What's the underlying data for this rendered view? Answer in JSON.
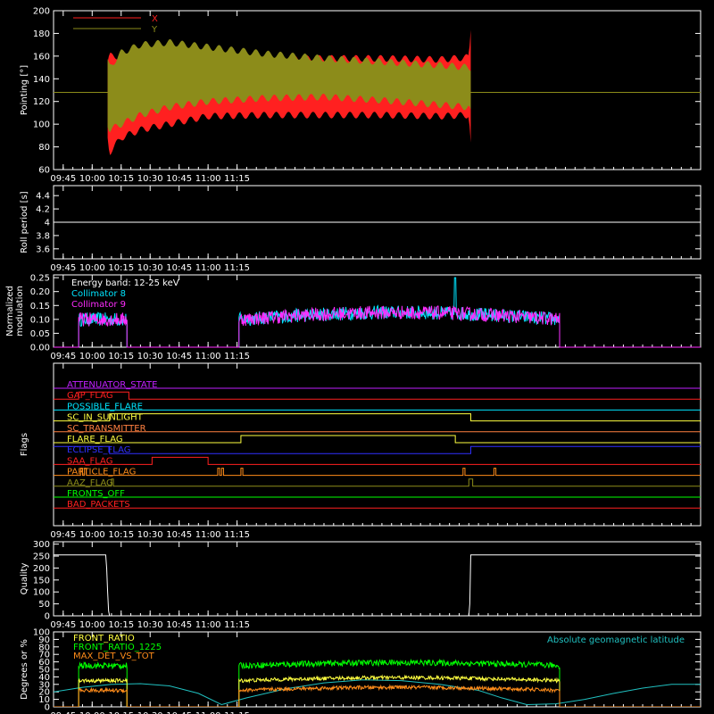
{
  "chart_data": [
    {
      "type": "area",
      "ylabel": "Pointing [°]",
      "ylim": [
        60,
        200
      ],
      "yticks": [
        60,
        80,
        100,
        120,
        140,
        160,
        180,
        200
      ],
      "xlim_min": [
        580,
        915
      ],
      "xtick_labels": [
        "09:45",
        "10:00",
        "10:15",
        "10:30",
        "10:45",
        "11:00",
        "11:15"
      ],
      "legend": "top-left",
      "series": [
        {
          "name": "X",
          "color": "#ff2020",
          "band": {
            "x": [
              608,
              609,
              615,
              625,
              640,
              660,
              690,
              720,
              750,
              780,
              795,
              796
            ],
            "upper": [
              155,
              160,
              160,
              158,
              156,
              155,
              157,
              158,
              158,
              157,
              159,
              185
            ],
            "lower": [
              88,
              75,
              88,
              95,
              100,
              107,
              108,
              108,
              108,
              107,
              108,
              82
            ]
          }
        },
        {
          "name": "Y",
          "color": "#8c8c1a",
          "band": {
            "x": [
              608,
              609,
              615,
              625,
              640,
              660,
              690,
              720,
              750,
              780,
              795,
              796
            ],
            "upper": [
              155,
              150,
              163,
              170,
              172,
              168,
              162,
              158,
              155,
              152,
              150,
              150
            ],
            "lower": [
              100,
              95,
              100,
              108,
              115,
              120,
              123,
              124,
              121,
              117,
              115,
              110
            ]
          }
        }
      ],
      "baseline": 128
    },
    {
      "type": "line",
      "ylabel": "Roll period [s]",
      "ylim": [
        3.45,
        4.55
      ],
      "yticks": [
        3.6,
        3.8,
        4.0,
        4.2,
        4.4
      ],
      "xtick_labels": [
        "09:45",
        "10:00",
        "10:15",
        "10:30",
        "10:45",
        "11:00",
        "11:15"
      ],
      "series": [
        {
          "x": [
            580,
            915
          ],
          "y": [
            4.0,
            4.0
          ],
          "color": "#ffffff"
        }
      ]
    },
    {
      "type": "line",
      "ylabel": "Normalized modulation",
      "ylim": [
        0,
        0.26
      ],
      "yticks": [
        0.0,
        0.05,
        0.1,
        0.15,
        0.2,
        0.25
      ],
      "ytick_labels": [
        "0.00",
        "0.05",
        "0.10",
        "0.15",
        "0.20",
        "0.25"
      ],
      "xtick_labels": [
        "09:45",
        "10:00",
        "10:15",
        "10:30",
        "10:45",
        "11:00",
        "11:15"
      ],
      "annotation": "Energy band: 12-25 keV",
      "segments": [
        [
          593,
          618
        ],
        [
          676,
          842
        ]
      ],
      "series": [
        {
          "name": "Collimator 8",
          "color": "#00e5ff",
          "level": [
            0.1,
            0.11,
            0.1,
            0.12,
            0.125,
            0.1
          ]
        },
        {
          "name": "Collimator 9",
          "color": "#ff2cff",
          "level": [
            0.1,
            0.11,
            0.1,
            0.12,
            0.125,
            0.1
          ]
        }
      ]
    },
    {
      "type": "line",
      "ylabel": "Flags",
      "xtick_labels": [
        "09:45",
        "10:00",
        "10:15",
        "10:30",
        "10:45",
        "11:00",
        "11:15"
      ],
      "flags": [
        {
          "name": "ATTENUATOR_STATE",
          "color": "#c020ff",
          "transitions": [
            [
              580,
              0
            ]
          ]
        },
        {
          "name": "GAP_FLAG",
          "color": "#ff2020",
          "transitions": [
            [
              580,
              0
            ],
            [
              593,
              1
            ],
            [
              619,
              0
            ]
          ]
        },
        {
          "name": "POSSIBLE_FLARE",
          "color": "#00e5ff",
          "transitions": [
            [
              580,
              0
            ]
          ]
        },
        {
          "name": "SC_IN_SUNLIGHT",
          "color": "#ffff40",
          "transitions": [
            [
              580,
              0
            ],
            [
              609,
              1
            ],
            [
              796,
              0
            ]
          ]
        },
        {
          "name": "SC_TRANSMITTER",
          "color": "#ff8040",
          "transitions": [
            [
              580,
              0
            ]
          ]
        },
        {
          "name": "FLARE_FLAG",
          "color": "#ffff40",
          "transitions": [
            [
              580,
              0
            ],
            [
              677,
              1
            ],
            [
              788,
              0
            ]
          ]
        },
        {
          "name": "ECLIPSE_FLAG",
          "color": "#3030ff",
          "transitions": [
            [
              580,
              1
            ],
            [
              609,
              0
            ],
            [
              796,
              1
            ]
          ]
        },
        {
          "name": "SAA_FLAG",
          "color": "#ff2020",
          "transitions": [
            [
              580,
              0
            ],
            [
              631,
              1
            ],
            [
              660,
              0
            ]
          ]
        },
        {
          "name": "PARTICLE_FLAG",
          "color": "#ff8c1a",
          "transitions": [
            [
              580,
              0
            ],
            [
              594,
              1
            ],
            [
              595,
              0
            ],
            [
              596,
              1
            ],
            [
              597,
              0
            ],
            [
              665,
              1
            ],
            [
              666,
              0
            ],
            [
              667,
              1
            ],
            [
              668,
              0
            ],
            [
              677,
              1
            ],
            [
              678,
              0
            ],
            [
              792,
              1
            ],
            [
              793,
              0
            ],
            [
              808,
              1
            ],
            [
              809,
              0
            ]
          ]
        },
        {
          "name": "AAZ_FLAG",
          "color": "#8c8c1a",
          "transitions": [
            [
              580,
              0
            ],
            [
              610,
              1
            ],
            [
              611,
              0
            ],
            [
              795,
              1
            ],
            [
              797,
              0
            ]
          ]
        },
        {
          "name": "FRONTS_OFF",
          "color": "#00ff00",
          "transitions": [
            [
              580,
              0
            ]
          ]
        },
        {
          "name": "BAD_PACKETS",
          "color": "#ff2020",
          "transitions": [
            [
              580,
              0
            ]
          ]
        }
      ]
    },
    {
      "type": "line",
      "ylabel": "Quality",
      "ylim": [
        0,
        310
      ],
      "yticks": [
        0,
        50,
        100,
        150,
        200,
        250,
        300
      ],
      "xtick_labels": [
        "09:45",
        "10:00",
        "10:15",
        "10:30",
        "10:45",
        "11:00",
        "11:15"
      ],
      "series": [
        {
          "color": "#ffffff",
          "x": [
            580,
            607,
            607.5,
            608,
            608.5,
            609,
            795,
            795.5,
            796,
            915
          ],
          "y": [
            255,
            255,
            200,
            100,
            20,
            0,
            0,
            50,
            255,
            255
          ]
        }
      ]
    },
    {
      "type": "line",
      "ylabel": "Degrees or %",
      "ylim": [
        0,
        100
      ],
      "yticks": [
        0,
        10,
        20,
        30,
        40,
        50,
        60,
        70,
        80,
        90,
        100
      ],
      "xtick_labels": [
        "09:45",
        "10:00",
        "10:15",
        "10:30",
        "10:45",
        "11:00",
        "11:15"
      ],
      "annotation": "Absolute geomagnetic latitude",
      "segments": [
        [
          593,
          618
        ],
        [
          676,
          842
        ]
      ],
      "series": [
        {
          "name": "FRONT_RATIO",
          "color": "#ffff40",
          "level": 35
        },
        {
          "name": "FRONT_RATIO_1225",
          "color": "#00ff00",
          "level": 55
        },
        {
          "name": "MAX_DET_VS_TOT",
          "color": "#ff8c1a",
          "level": 22
        },
        {
          "name": "Absolute geomagnetic latitude",
          "color": "#20c0c0",
          "x": [
            580,
            595,
            610,
            625,
            640,
            655,
            667,
            680,
            700,
            720,
            740,
            760,
            780,
            800,
            812,
            825,
            840,
            855,
            870,
            885,
            900,
            915
          ],
          "y": [
            20,
            26,
            30,
            31,
            28,
            18,
            3,
            12,
            24,
            32,
            36,
            35,
            30,
            22,
            12,
            3,
            4,
            10,
            18,
            25,
            30,
            30
          ]
        }
      ]
    }
  ]
}
